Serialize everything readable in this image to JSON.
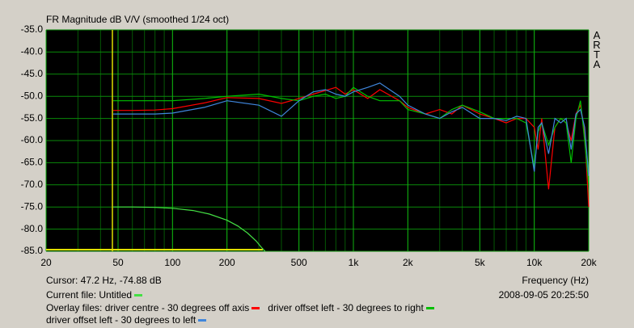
{
  "chart_data": {
    "type": "line",
    "title": "FR Magnitude dB V/V (smoothed 1/24 oct)",
    "brand": "ARTA",
    "cursor_text": "Cursor: 47.2 Hz, -74.88 dB",
    "x_label": "Frequency (Hz)",
    "timestamp": "2008-09-05  20:25:50",
    "current_label": "Current file:",
    "overlay_label": "Overlay files:",
    "log_x": true,
    "grid": true,
    "xlim": [
      20,
      20000
    ],
    "ylim": [
      -85,
      -35
    ],
    "xticks": [
      20,
      50,
      100,
      200,
      500,
      {
        "value": 1000,
        "label": "1k"
      },
      {
        "value": 2000,
        "label": "2k"
      },
      {
        "value": 5000,
        "label": "5k"
      },
      {
        "value": 10000,
        "label": "10k"
      },
      {
        "value": 20000,
        "label": "20k"
      }
    ],
    "yticks": [
      {
        "value": -35,
        "label": "-35.0"
      },
      {
        "value": -40,
        "label": "-40.0"
      },
      {
        "value": -45,
        "label": "-45.0"
      },
      {
        "value": -50,
        "label": "-50.0"
      },
      {
        "value": -55,
        "label": "-55.0"
      },
      {
        "value": -60,
        "label": "-60.0"
      },
      {
        "value": -65,
        "label": "-65.0"
      },
      {
        "value": -70,
        "label": "-70.0"
      },
      {
        "value": -75,
        "label": "-75.0"
      },
      {
        "value": -80,
        "label": "-80.0"
      },
      {
        "value": -85,
        "label": "-85.0"
      }
    ],
    "x": [
      47,
      60,
      80,
      100,
      150,
      200,
      300,
      400,
      500,
      600,
      700,
      800,
      900,
      1000,
      1200,
      1400,
      1800,
      2000,
      2500,
      3000,
      3500,
      4000,
      5000,
      6000,
      7000,
      8000,
      9000,
      10000,
      10500,
      11000,
      12000,
      13000,
      14000,
      15000,
      16000,
      17000,
      18000,
      19000,
      20000
    ],
    "current": {
      "name": "Untitled",
      "color": "#44e044",
      "x": [
        47,
        60,
        80,
        100,
        130,
        160,
        200,
        230,
        260,
        290,
        310,
        325
      ],
      "values": [
        -75,
        -75,
        -75.1,
        -75.3,
        -75.8,
        -76.6,
        -78,
        -79.3,
        -80.9,
        -82.7,
        -84.1,
        -85
      ]
    },
    "series": [
      {
        "name": "driver centre - 30 degrees off axis",
        "color": "#ff0000",
        "values": [
          -53.2,
          -53.2,
          -53.1,
          -52.8,
          -51.5,
          -50.3,
          -50.5,
          -51.6,
          -50.5,
          -49.5,
          -48.7,
          -48,
          -49.5,
          -48.5,
          -50.5,
          -48.5,
          -51,
          -52.5,
          -54,
          -53,
          -54,
          -52,
          -54,
          -55,
          -56,
          -55,
          -55,
          -57,
          -62,
          -55,
          -71,
          -57,
          -55,
          -56,
          -60,
          -54,
          -52,
          -58,
          -75
        ]
      },
      {
        "name": "driver offset left - 30 degrees to right",
        "color": "#00c000",
        "values": [
          -51,
          -51,
          -51,
          -51,
          -50.5,
          -50,
          -49.5,
          -50.5,
          -51,
          -50,
          -49.5,
          -50.5,
          -50,
          -48,
          -50,
          -51,
          -51,
          -53,
          -54,
          -55,
          -53,
          -52,
          -53.5,
          -55,
          -55,
          -55,
          -56,
          -66,
          -58,
          -56,
          -61,
          -57,
          -55,
          -56,
          -65,
          -55,
          -51,
          -60,
          -70
        ]
      },
      {
        "name": "driver offset left - 30 degrees to left",
        "color": "#3f86dc",
        "values": [
          -54,
          -54,
          -54,
          -53.8,
          -52.5,
          -51,
          -52,
          -54.5,
          -51,
          -49,
          -48.5,
          -49.5,
          -50,
          -49,
          -48,
          -47,
          -50,
          -52,
          -54,
          -55,
          -53.5,
          -52.5,
          -55,
          -55,
          -55.5,
          -54.5,
          -55,
          -67,
          -57,
          -56,
          -63,
          -55,
          -56,
          -55,
          -62,
          -54,
          -53,
          -57,
          -68
        ]
      }
    ]
  }
}
